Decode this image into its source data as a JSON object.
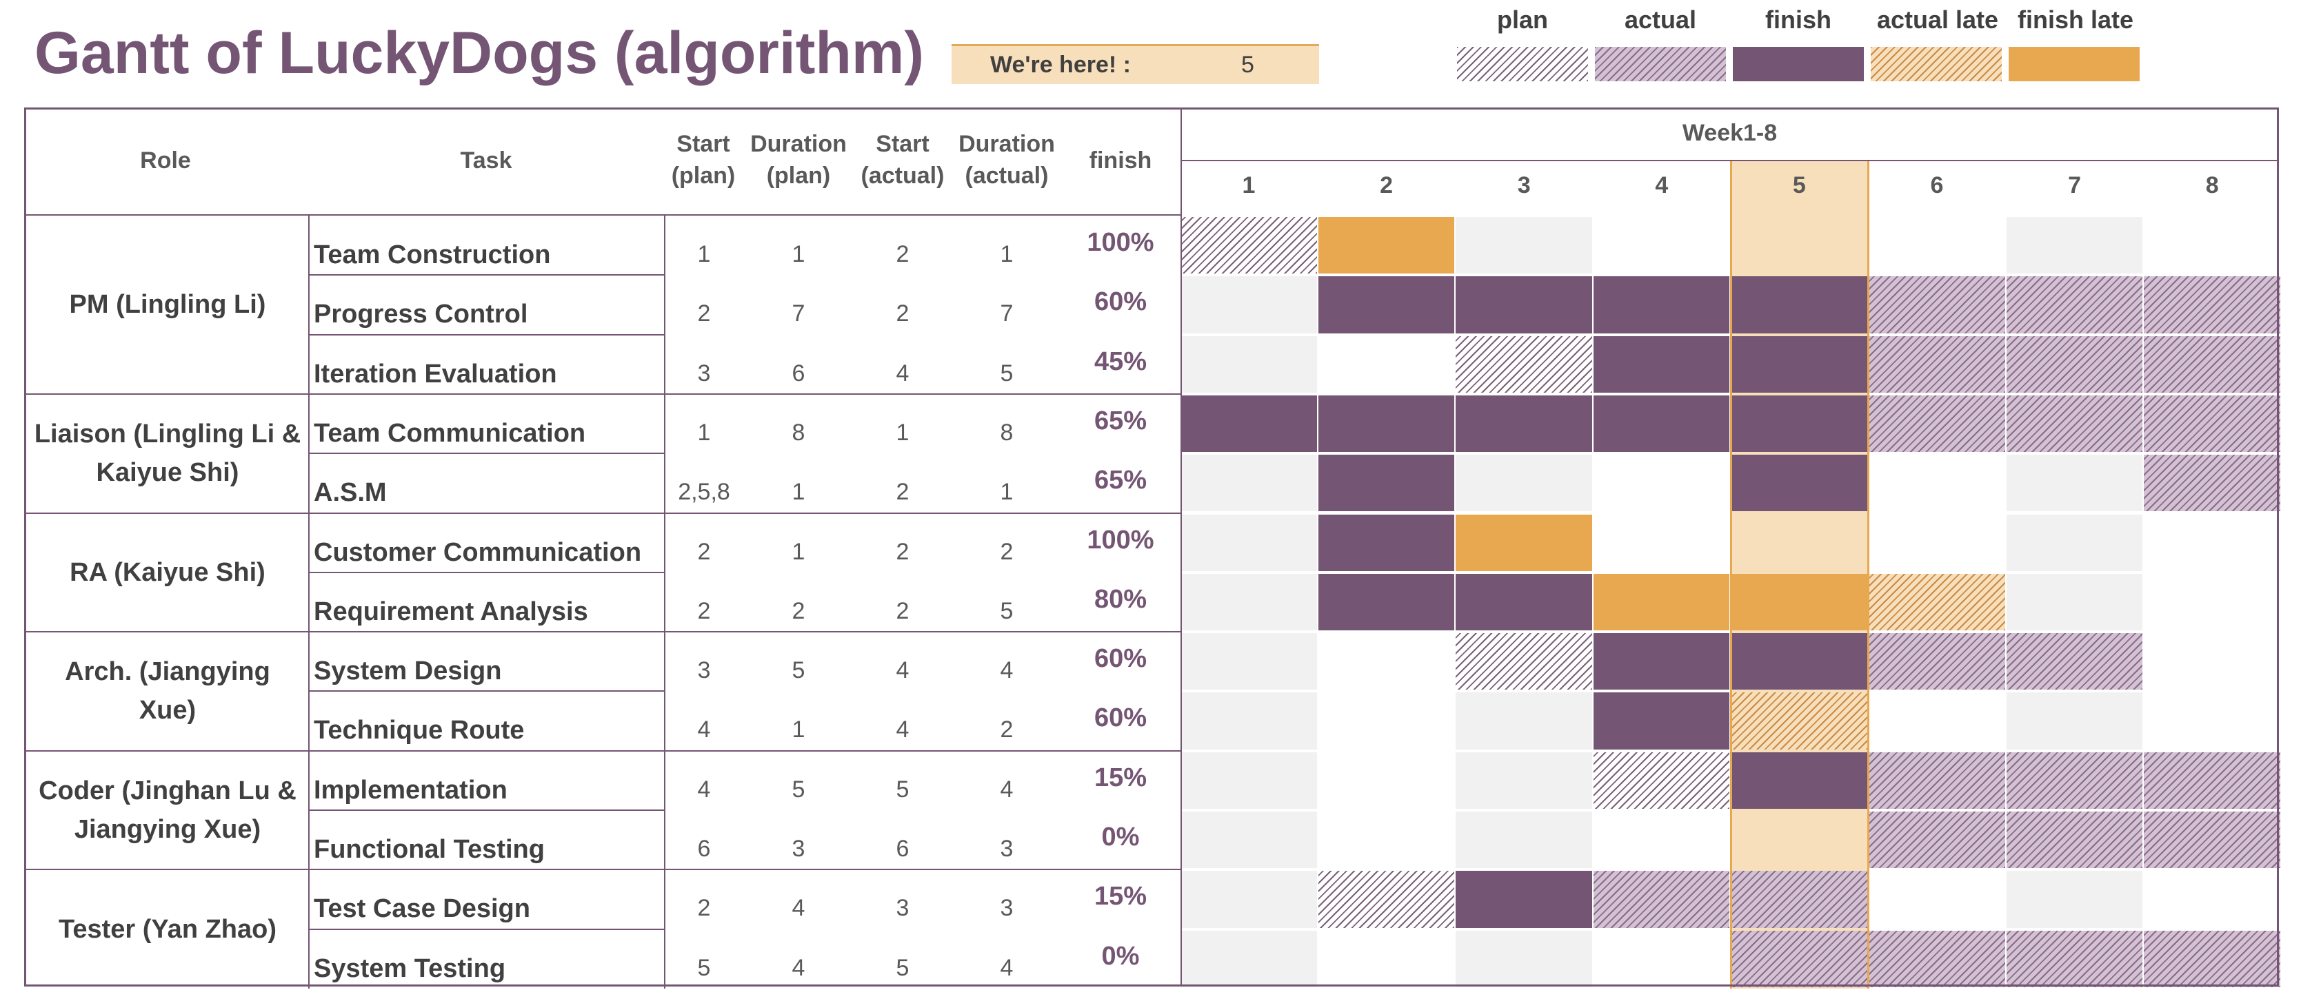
{
  "title": "Gantt of LuckyDogs (algorithm)",
  "here": {
    "label": "We're here! :",
    "value": "5",
    "week": 5
  },
  "legend": [
    {
      "key": "plan",
      "label": "plan"
    },
    {
      "key": "actual",
      "label": "actual"
    },
    {
      "key": "finish",
      "label": "finish"
    },
    {
      "key": "late",
      "label": "actual late"
    },
    {
      "key": "finishlate",
      "label": "finish late"
    }
  ],
  "headers": {
    "role": "Role",
    "task": "Task",
    "start_plan_1": "Start",
    "start_plan_2": "(plan)",
    "dur_plan_1": "Duration",
    "dur_plan_2": "(plan)",
    "start_act_1": "Start",
    "start_act_2": "(actual)",
    "dur_act_1": "Duration",
    "dur_act_2": "(actual)",
    "finish": "finish",
    "weeks_title": "Week1-8",
    "weeks": [
      "1",
      "2",
      "3",
      "4",
      "5",
      "6",
      "7",
      "8"
    ]
  },
  "colors": {
    "purple": "#745573",
    "orange": "#e8a84f",
    "light_orange": "#f8dfbb",
    "grey": "#f1f1f1"
  },
  "roles": [
    {
      "line1": "PM (Lingling Li)",
      "line2": ""
    },
    {
      "line1": "Liaison (Lingling Li &",
      "line2": "Kaiyue Shi)"
    },
    {
      "line1": "RA (Kaiyue Shi)",
      "line2": ""
    },
    {
      "line1": "Arch. (Jiangying",
      "line2": "Xue)"
    },
    {
      "line1": "Coder (Jinghan Lu &",
      "line2": "Jiangying Xue)"
    },
    {
      "line1": "Tester (Yan Zhao)",
      "line2": ""
    }
  ],
  "tasks": [
    {
      "name": "Team Construction",
      "start_plan": "1",
      "dur_plan": "1",
      "start_act": "2",
      "dur_act": "1",
      "finish": "100%",
      "cells": [
        "plan",
        "finishlate",
        "",
        "",
        "",
        "",
        "",
        ""
      ]
    },
    {
      "name": "Progress Control",
      "start_plan": "2",
      "dur_plan": "7",
      "start_act": "2",
      "dur_act": "7",
      "finish": "60%",
      "cells": [
        "",
        "finish",
        "finish",
        "finish",
        "finish",
        "actual",
        "actual",
        "actual"
      ]
    },
    {
      "name": "Iteration Evaluation",
      "start_plan": "3",
      "dur_plan": "6",
      "start_act": "4",
      "dur_act": "5",
      "finish": "45%",
      "cells": [
        "",
        "",
        "plan",
        "finish",
        "finish",
        "actual",
        "actual",
        "actual"
      ]
    },
    {
      "name": "Team Communication",
      "start_plan": "1",
      "dur_plan": "8",
      "start_act": "1",
      "dur_act": "8",
      "finish": "65%",
      "cells": [
        "finish",
        "finish",
        "finish",
        "finish",
        "finish",
        "actual",
        "actual",
        "actual"
      ]
    },
    {
      "name": "A.S.M",
      "start_plan": "2,5,8",
      "dur_plan": "1",
      "start_act": "2",
      "dur_act": "1",
      "finish": "65%",
      "cells": [
        "",
        "finish",
        "",
        "",
        "finish",
        "",
        "",
        "actual"
      ]
    },
    {
      "name": "Customer Communication",
      "start_plan": "2",
      "dur_plan": "1",
      "start_act": "2",
      "dur_act": "2",
      "finish": "100%",
      "cells": [
        "",
        "finish",
        "finishlate",
        "",
        "",
        "",
        "",
        ""
      ]
    },
    {
      "name": "Requirement Analysis",
      "start_plan": "2",
      "dur_plan": "2",
      "start_act": "2",
      "dur_act": "5",
      "finish": "80%",
      "cells": [
        "",
        "finish",
        "finish",
        "finishlate",
        "finishlate",
        "late",
        "",
        ""
      ]
    },
    {
      "name": "System Design",
      "start_plan": "3",
      "dur_plan": "5",
      "start_act": "4",
      "dur_act": "4",
      "finish": "60%",
      "cells": [
        "",
        "",
        "plan",
        "finish",
        "finish",
        "actual",
        "actual",
        ""
      ]
    },
    {
      "name": "Technique Route",
      "start_plan": "4",
      "dur_plan": "1",
      "start_act": "4",
      "dur_act": "2",
      "finish": "60%",
      "cells": [
        "",
        "",
        "",
        "finish",
        "late",
        "",
        "",
        ""
      ]
    },
    {
      "name": "Implementation",
      "start_plan": "4",
      "dur_plan": "5",
      "start_act": "5",
      "dur_act": "4",
      "finish": "15%",
      "cells": [
        "",
        "",
        "",
        "plan",
        "finish",
        "actual",
        "actual",
        "actual"
      ]
    },
    {
      "name": "Functional Testing",
      "start_plan": "6",
      "dur_plan": "3",
      "start_act": "6",
      "dur_act": "3",
      "finish": "0%",
      "cells": [
        "",
        "",
        "",
        "",
        "",
        "actual",
        "actual",
        "actual"
      ]
    },
    {
      "name": "Test Case Design",
      "start_plan": "2",
      "dur_plan": "4",
      "start_act": "3",
      "dur_act": "3",
      "finish": "15%",
      "cells": [
        "",
        "plan",
        "finish",
        "actual",
        "actual",
        "",
        "",
        ""
      ]
    },
    {
      "name": "System Testing",
      "start_plan": "5",
      "dur_plan": "4",
      "start_act": "5",
      "dur_act": "4",
      "finish": "0%",
      "cells": [
        "",
        "",
        "",
        "",
        "actual",
        "actual",
        "actual",
        "actual"
      ]
    }
  ]
}
